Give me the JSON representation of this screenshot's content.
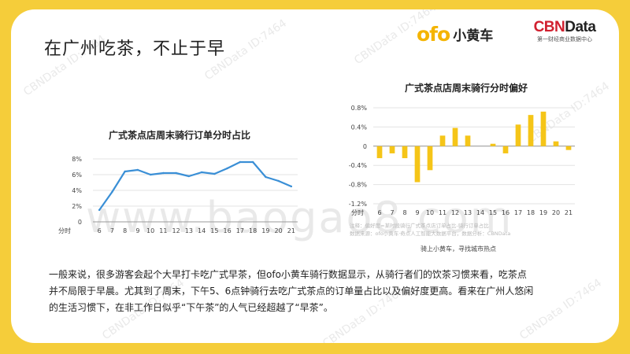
{
  "page": {
    "title": "在广州吃茶，不止于早",
    "logo_ofo": "ofo",
    "logo_ofo_cn": "小黄车",
    "logo_cbn": "CBNData",
    "logo_cbn_sub": "第一财经商业数据中心",
    "watermark_text": "CBNData ID:7464",
    "watermark_site": "www.baogao8.com",
    "paragraph": [
      "一般来说，很多游客会起个大早打卡吃广式早茶，但ofo小黄车骑行数据显示，从骑行者们的饮茶习惯来看，吃茶点",
      "并不局限于早晨。尤其到了周末，下午5、6点钟骑行去吃广式茶点的订单量占比以及偏好度更高。看来在广州人悠闲",
      "的生活习惯下，在非工作日似乎“下午茶”的人气已经超越了“早茶”。"
    ],
    "source_note": [
      "注释：偏好度=某时段骑行广式茶点店订单占比-骑行订单占比",
      "数据来源：ofo小黄车·奇点人工智能大数据平台，数据分析：CBNData"
    ],
    "footer_tag": "骑上小黄车，寻找城市热点"
  },
  "colors": {
    "line": "#3a8fd6",
    "bar": "#f5c518",
    "background": "#f5cd3a"
  },
  "chart_data": [
    {
      "type": "line",
      "title": "广式茶点店周末骑行订单分时占比",
      "x_prefix_label": "分时",
      "x": [
        "6",
        "7",
        "8",
        "9",
        "10",
        "11",
        "12",
        "13",
        "14",
        "15",
        "16",
        "17",
        "18",
        "19",
        "20",
        "21"
      ],
      "values": [
        1.5,
        3.8,
        6.4,
        6.6,
        6.0,
        6.2,
        6.2,
        5.8,
        6.3,
        6.1,
        6.8,
        7.6,
        7.6,
        5.7,
        5.2,
        4.5
      ],
      "ylim": [
        0,
        8
      ],
      "yticks": [
        "0",
        "2%",
        "4%",
        "6%",
        "8%"
      ],
      "ytick_values": [
        0,
        2,
        4,
        6,
        8
      ],
      "grid": true
    },
    {
      "type": "bar",
      "title": "广式茶点店周末骑行分时偏好",
      "x_prefix_label": "分时",
      "x": [
        "6",
        "7",
        "8",
        "9",
        "10",
        "11",
        "12",
        "13",
        "14",
        "15",
        "16",
        "17",
        "18",
        "19",
        "20",
        "21"
      ],
      "values": [
        -0.25,
        -0.15,
        -0.25,
        -0.75,
        -0.5,
        0.22,
        0.38,
        0.22,
        0.0,
        0.05,
        -0.15,
        0.45,
        0.65,
        0.72,
        0.1,
        -0.08
      ],
      "ylim": [
        -1.2,
        0.8
      ],
      "yticks": [
        "0.8%",
        "0.4%",
        "0",
        "-0.4%",
        "-0.8%",
        "-1.2%"
      ],
      "ytick_values": [
        0.8,
        0.4,
        0,
        -0.4,
        -0.8,
        -1.2
      ],
      "grid": true
    }
  ]
}
